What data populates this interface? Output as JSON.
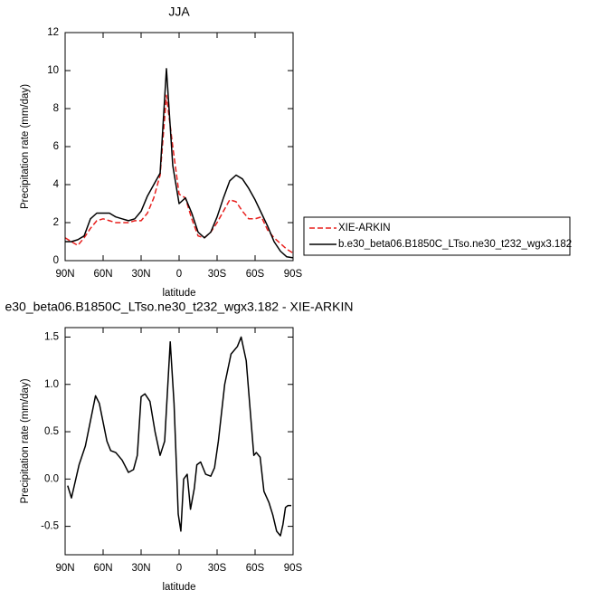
{
  "chart_data": [
    {
      "type": "line",
      "title": "JJA",
      "x_label": "latitude",
      "y_label": "Precipitation rate (mm/day)",
      "xlim": [
        90,
        -90
      ],
      "ylim": [
        0,
        12
      ],
      "xticks": [
        {
          "value": 90,
          "label": "90N"
        },
        {
          "value": 60,
          "label": "60N"
        },
        {
          "value": 30,
          "label": "30N"
        },
        0,
        {
          "value": -30,
          "label": "30S"
        },
        {
          "value": -60,
          "label": "60S"
        },
        {
          "value": -90,
          "label": "90S"
        }
      ],
      "yticks": [
        0,
        2,
        4,
        6,
        8,
        10,
        12
      ],
      "legend_position": "right",
      "x": [
        90,
        85,
        80,
        75,
        70,
        65,
        60,
        55,
        50,
        45,
        40,
        35,
        30,
        25,
        20,
        15,
        10,
        5,
        0,
        -5,
        -10,
        -15,
        -20,
        -25,
        -30,
        -35,
        -40,
        -45,
        -50,
        -55,
        -60,
        -65,
        -70,
        -75,
        -80,
        -85,
        -90
      ],
      "series": [
        {
          "name": "XIE-ARKIN",
          "color": "#e8201e",
          "style": "dashed",
          "values": [
            1.2,
            1.0,
            0.8,
            1.2,
            1.7,
            2.1,
            2.2,
            2.1,
            2.0,
            2.0,
            2.0,
            2.1,
            2.1,
            2.5,
            3.3,
            4.5,
            8.7,
            6.0,
            3.5,
            3.3,
            2.2,
            1.3,
            1.2,
            1.5,
            2.0,
            2.6,
            3.2,
            3.1,
            2.6,
            2.2,
            2.2,
            2.3,
            1.6,
            1.2,
            0.9,
            0.6,
            0.4
          ]
        },
        {
          "name": "b.e30_beta06.B1850C_LTso.ne30_t232_wgx3.182",
          "color": "#000000",
          "style": "solid",
          "values": [
            1.0,
            1.0,
            1.1,
            1.3,
            2.2,
            2.5,
            2.5,
            2.5,
            2.3,
            2.2,
            2.1,
            2.2,
            2.6,
            3.4,
            4.0,
            4.6,
            10.1,
            5.0,
            3.0,
            3.3,
            2.5,
            1.5,
            1.2,
            1.5,
            2.3,
            3.3,
            4.2,
            4.5,
            4.3,
            3.8,
            3.2,
            2.5,
            1.8,
            1.0,
            0.5,
            0.2,
            0.15
          ]
        }
      ]
    },
    {
      "type": "line",
      "title": "e30_beta06.B1850C_LTso.ne30_t232_wgx3.182 - XIE-ARKIN",
      "x_label": "latitude",
      "y_label": "Precipitation rate (mm/day)",
      "xlim": [
        90,
        -90
      ],
      "ylim": [
        -0.8,
        1.6
      ],
      "xticks": [
        {
          "value": 90,
          "label": "90N"
        },
        {
          "value": 60,
          "label": "60N"
        },
        {
          "value": 30,
          "label": "30N"
        },
        0,
        {
          "value": -30,
          "label": "30S"
        },
        {
          "value": -60,
          "label": "60S"
        },
        {
          "value": -90,
          "label": "90S"
        }
      ],
      "yticks": [
        -0.5,
        {
          "value": 0,
          "label": "0.0"
        },
        0.5,
        {
          "value": 1,
          "label": "1.0"
        },
        1.5
      ],
      "x": [
        88,
        85,
        79,
        74,
        66,
        63,
        57,
        54,
        50,
        45,
        40,
        36,
        33,
        30,
        27,
        23,
        19,
        15,
        11.4,
        7,
        4,
        2,
        0.7,
        -1.4,
        -3.6,
        -6.4,
        -9,
        -12,
        -14,
        -17,
        -21,
        -25,
        -28,
        -31,
        -36,
        -41,
        -46,
        -49,
        -53,
        -56,
        -59,
        -61,
        -64,
        -67,
        -71,
        -74,
        -77,
        -80,
        -82,
        -84,
        -86,
        -88.6
      ],
      "series": [
        {
          "color": "#000000",
          "style": "solid",
          "values": [
            -0.07,
            -0.2,
            0.15,
            0.35,
            0.88,
            0.8,
            0.4,
            0.3,
            0.28,
            0.2,
            0.07,
            0.1,
            0.25,
            0.87,
            0.9,
            0.82,
            0.5,
            0.25,
            0.4,
            1.45,
            0.8,
            0.1,
            -0.37,
            -0.55,
            0,
            0.05,
            -0.32,
            -0.1,
            0.15,
            0.18,
            0.05,
            0.03,
            0.12,
            0.4,
            1.0,
            1.32,
            1.4,
            1.5,
            1.25,
            0.75,
            0.25,
            0.28,
            0.23,
            -0.13,
            -0.25,
            -0.38,
            -0.55,
            -0.6,
            -0.48,
            -0.3,
            -0.28,
            -0.28
          ]
        }
      ]
    }
  ]
}
